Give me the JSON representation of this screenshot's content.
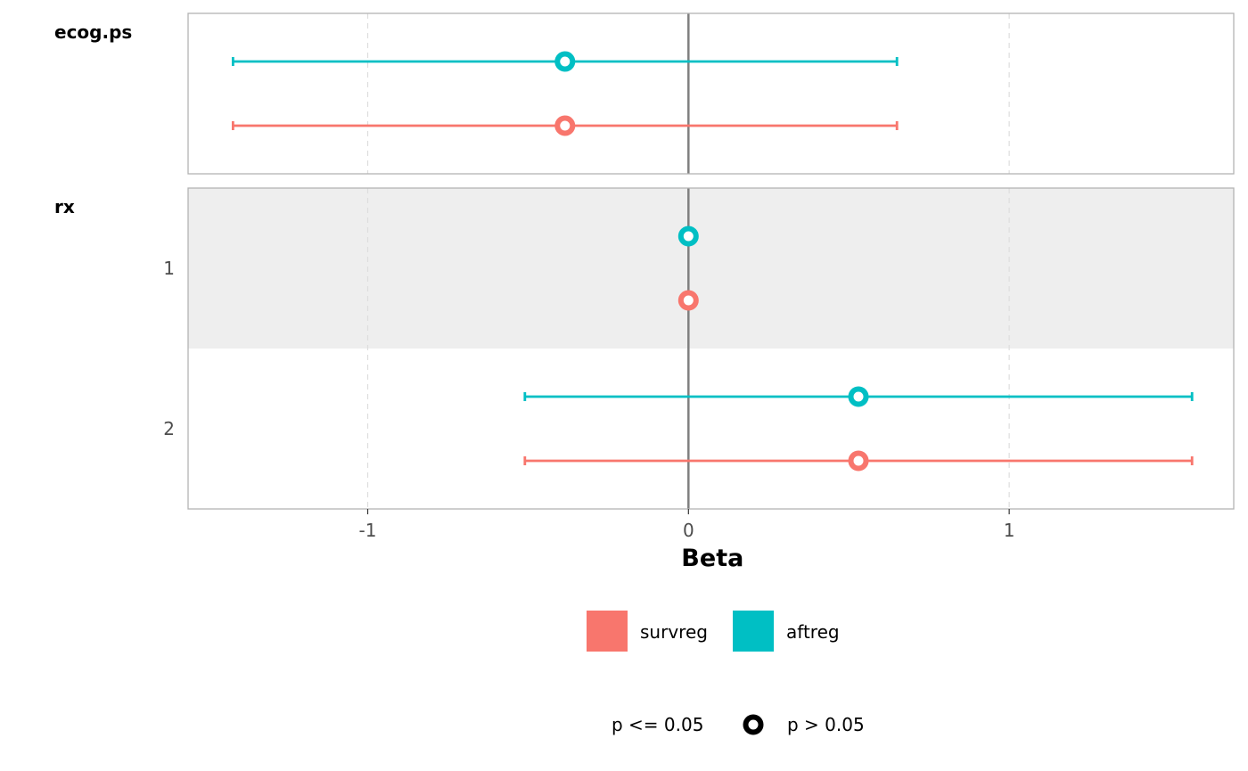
{
  "chart_data": {
    "type": "forest",
    "xlabel": "Beta",
    "xlim": [
      -1.56,
      1.7
    ],
    "x_ticks": [
      {
        "value": -1,
        "label": "-1"
      },
      {
        "value": 0,
        "label": "0"
      },
      {
        "value": 1,
        "label": "1"
      }
    ],
    "reference_line": 0,
    "gridlines": "vertical dashed",
    "models": [
      {
        "name": "survreg",
        "color": "#F8766D"
      },
      {
        "name": "aftreg",
        "color": "#00BFC4"
      }
    ],
    "facets": [
      {
        "title": "ecog.ps",
        "rows": [
          {
            "label": "",
            "shaded": false,
            "estimates": [
              {
                "model": "survreg",
                "estimate": -0.385,
                "lower": -1.42,
                "upper": 0.65,
                "p_gt_005": true
              },
              {
                "model": "aftreg",
                "estimate": -0.385,
                "lower": -1.42,
                "upper": 0.65,
                "p_gt_005": true
              }
            ]
          }
        ]
      },
      {
        "title": "rx",
        "rows": [
          {
            "label": "1",
            "shaded": true,
            "estimates": [
              {
                "model": "survreg",
                "estimate": 0,
                "lower": null,
                "upper": null,
                "p_gt_005": true
              },
              {
                "model": "aftreg",
                "estimate": 0,
                "lower": null,
                "upper": null,
                "p_gt_005": true
              }
            ]
          },
          {
            "label": "2",
            "shaded": false,
            "estimates": [
              {
                "model": "survreg",
                "estimate": 0.53,
                "lower": -0.51,
                "upper": 1.57,
                "p_gt_005": true
              },
              {
                "model": "aftreg",
                "estimate": 0.53,
                "lower": -0.51,
                "upper": 1.57,
                "p_gt_005": true
              }
            ]
          }
        ]
      }
    ],
    "legend": {
      "position": "bottom",
      "color_items": [
        "survreg",
        "aftreg"
      ],
      "shape_items": [
        {
          "label": "p <= 0.05",
          "shape": "none"
        },
        {
          "label": "p > 0.05",
          "shape": "open-circle"
        }
      ]
    }
  }
}
